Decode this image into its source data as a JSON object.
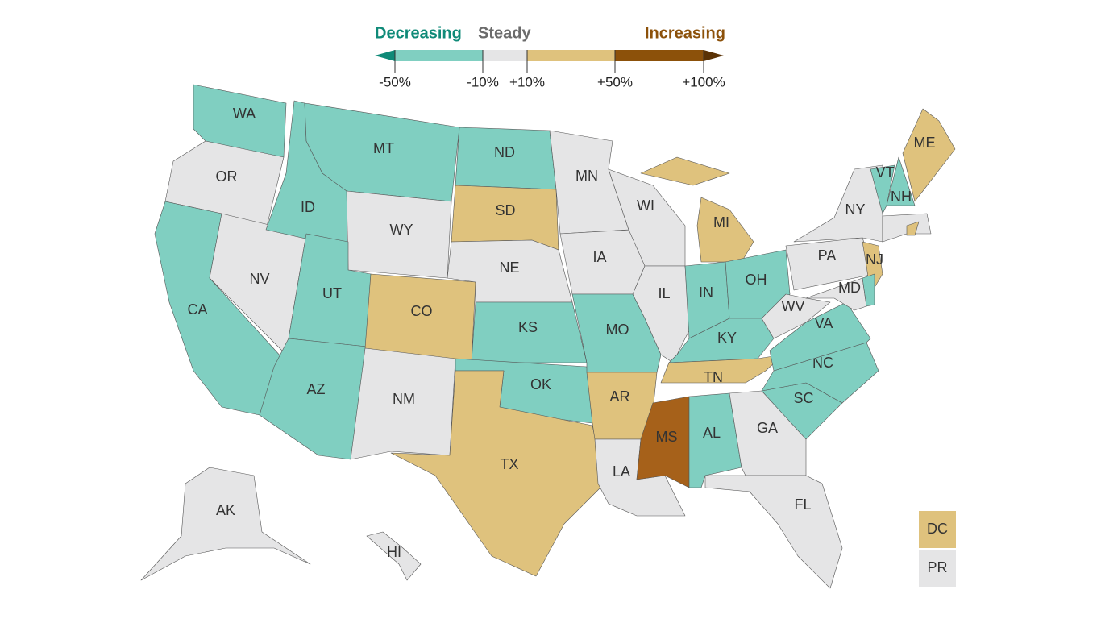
{
  "legend": {
    "headers": [
      {
        "text": "Decreasing",
        "color": "#0f8a78"
      },
      {
        "text": "Steady",
        "color": "#6b6b6b"
      },
      {
        "text": "Increasing",
        "color": "#8c510a"
      }
    ],
    "segments": [
      "#0f8a78",
      "#80cfc1",
      "#e5e5e6",
      "#dfc27d",
      "#8c510a",
      "#5a3205"
    ],
    "ticks": [
      {
        "value": -50,
        "label": "-50%"
      },
      {
        "value": -10,
        "label": "-10%"
      },
      {
        "value": 10,
        "label": "+10%"
      },
      {
        "value": 50,
        "label": "+50%"
      },
      {
        "value": 100,
        "label": "+100%"
      }
    ]
  },
  "states": [
    {
      "label": "WA",
      "color": "#80cfc1"
    },
    {
      "label": "OR",
      "color": "#e5e5e6"
    },
    {
      "label": "CA",
      "color": "#80cfc1"
    },
    {
      "label": "NV",
      "color": "#e5e5e6"
    },
    {
      "label": "ID",
      "color": "#80cfc1"
    },
    {
      "label": "MT",
      "color": "#80cfc1"
    },
    {
      "label": "WY",
      "color": "#e5e5e6"
    },
    {
      "label": "UT",
      "color": "#80cfc1"
    },
    {
      "label": "AZ",
      "color": "#80cfc1"
    },
    {
      "label": "CO",
      "color": "#dfc27d"
    },
    {
      "label": "NM",
      "color": "#e5e5e6"
    },
    {
      "label": "ND",
      "color": "#80cfc1"
    },
    {
      "label": "SD",
      "color": "#dfc27d"
    },
    {
      "label": "NE",
      "color": "#e5e5e6"
    },
    {
      "label": "KS",
      "color": "#80cfc1"
    },
    {
      "label": "OK",
      "color": "#80cfc1"
    },
    {
      "label": "TX",
      "color": "#dfc27d"
    },
    {
      "label": "MN",
      "color": "#e5e5e6"
    },
    {
      "label": "IA",
      "color": "#e5e5e6"
    },
    {
      "label": "MO",
      "color": "#80cfc1"
    },
    {
      "label": "AR",
      "color": "#dfc27d"
    },
    {
      "label": "LA",
      "color": "#e5e5e6"
    },
    {
      "label": "WI",
      "color": "#e5e5e6"
    },
    {
      "label": "IL",
      "color": "#e5e5e6"
    },
    {
      "label": "MI",
      "color": "#dfc27d"
    },
    {
      "label": "IN",
      "color": "#80cfc1"
    },
    {
      "label": "OH",
      "color": "#80cfc1"
    },
    {
      "label": "KY",
      "color": "#80cfc1"
    },
    {
      "label": "TN",
      "color": "#dfc27d"
    },
    {
      "label": "MS",
      "color": "#a6611a"
    },
    {
      "label": "AL",
      "color": "#80cfc1"
    },
    {
      "label": "GA",
      "color": "#e5e5e6"
    },
    {
      "label": "FL",
      "color": "#e5e5e6"
    },
    {
      "label": "SC",
      "color": "#80cfc1"
    },
    {
      "label": "NC",
      "color": "#80cfc1"
    },
    {
      "label": "VA",
      "color": "#80cfc1"
    },
    {
      "label": "WV",
      "color": "#e5e5e6"
    },
    {
      "label": "PA",
      "color": "#e5e5e6"
    },
    {
      "label": "NY",
      "color": "#e5e5e6"
    },
    {
      "label": "NJ",
      "color": "#dfc27d"
    },
    {
      "label": "MD",
      "color": "#e5e5e6"
    },
    {
      "label": null,
      "color": "#80cfc1"
    },
    {
      "label": "VT",
      "color": "#80cfc1"
    },
    {
      "label": "NH",
      "color": "#80cfc1"
    },
    {
      "label": "ME",
      "color": "#dfc27d"
    },
    {
      "label": null,
      "color": "#e5e5e6"
    },
    {
      "label": null,
      "color": "#dfc27d"
    },
    {
      "label": "AK",
      "color": "#e5e5e6"
    },
    {
      "label": "HI",
      "color": "#e5e5e6"
    }
  ],
  "territories": [
    {
      "label": "DC",
      "color": "#dfc27d"
    },
    {
      "label": "PR",
      "color": "#e5e5e6"
    }
  ]
}
